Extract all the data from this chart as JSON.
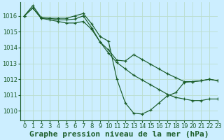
{
  "title": "Graphe pression niveau de la mer (hPa)",
  "background_color": "#cceeff",
  "grid_color": "#bbddcc",
  "line_color": "#1a5c28",
  "ylim": [
    1009.4,
    1016.85
  ],
  "xlim": [
    -0.5,
    23
  ],
  "yticks": [
    1010,
    1011,
    1012,
    1013,
    1014,
    1015,
    1016
  ],
  "xticks": [
    0,
    1,
    2,
    3,
    4,
    5,
    6,
    7,
    8,
    9,
    10,
    11,
    12,
    13,
    14,
    15,
    16,
    17,
    18,
    19,
    20,
    21,
    22,
    23
  ],
  "series": [
    [
      1016.0,
      1016.65,
      1015.9,
      1015.85,
      1015.85,
      1015.85,
      1016.0,
      1016.15,
      1015.5,
      1014.7,
      1014.4,
      1012.0,
      1010.5,
      1009.85,
      1009.8,
      1010.05,
      1010.5,
      1010.95,
      1011.15,
      1011.8,
      1011.85,
      1011.9,
      1012.0,
      1011.9
    ],
    [
      1016.0,
      1016.5,
      1015.85,
      1015.75,
      1015.65,
      1015.55,
      1015.55,
      1015.65,
      1015.15,
      1014.35,
      1013.65,
      1013.05,
      1012.65,
      1012.25,
      1011.95,
      1011.65,
      1011.35,
      1011.05,
      1010.85,
      1010.75,
      1010.65,
      1010.65,
      1010.75,
      1010.75
    ],
    [
      1016.0,
      1016.5,
      1015.85,
      1015.85,
      1015.75,
      1015.75,
      1015.8,
      1016.0,
      1015.25,
      1014.35,
      1013.85,
      1013.2,
      1013.15,
      1013.55,
      1013.25,
      1012.95,
      1012.65,
      1012.35,
      1012.1,
      1011.85,
      1011.85,
      1011.9,
      1012.0,
      1011.9
    ]
  ],
  "title_fontsize": 8,
  "tick_fontsize": 6,
  "label_color": "#1a5c28",
  "spine_color": "#1a5c28"
}
